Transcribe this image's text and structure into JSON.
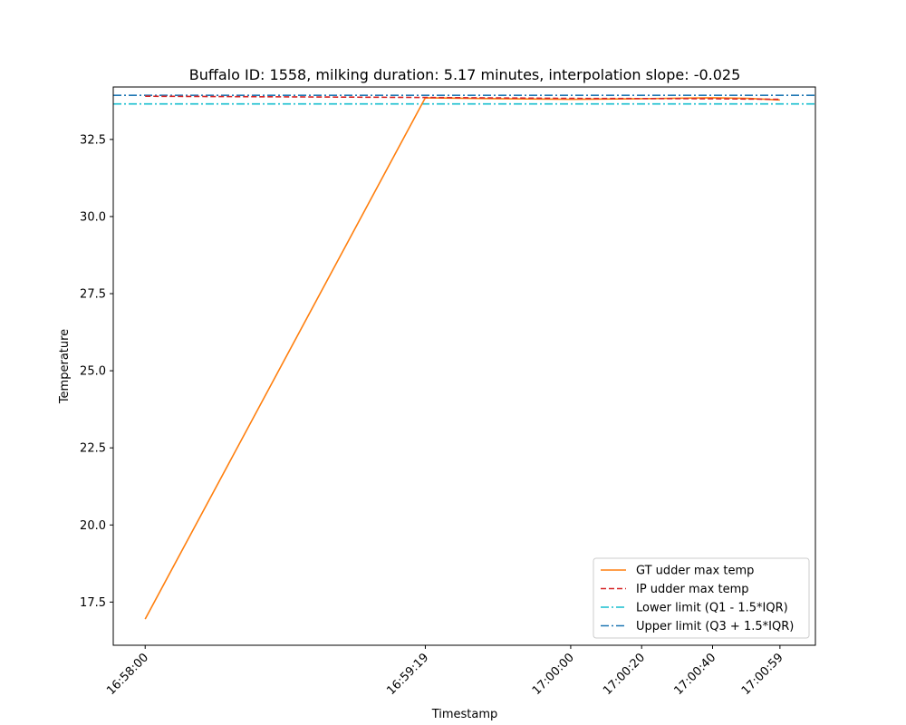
{
  "chart_data": {
    "type": "line",
    "title": "Buffalo ID: 1558, milking duration: 5.17 minutes, interpolation slope: -0.025",
    "xlabel": "Timestamp",
    "ylabel": "Temperature",
    "x_ticks": [
      {
        "t": 0,
        "label": "16:58:00"
      },
      {
        "t": 79,
        "label": "16:59:19"
      },
      {
        "t": 120,
        "label": "17:00:00"
      },
      {
        "t": 140,
        "label": "17:00:20"
      },
      {
        "t": 160,
        "label": "17:00:40"
      },
      {
        "t": 179,
        "label": "17:00:59"
      }
    ],
    "xlim": [
      -9,
      189
    ],
    "ylim": [
      16.1,
      34.2
    ],
    "y_ticks": [
      17.5,
      20.0,
      22.5,
      25.0,
      27.5,
      30.0,
      32.5
    ],
    "y_tick_labels": [
      "17.5",
      "20.0",
      "22.5",
      "25.0",
      "27.5",
      "30.0",
      "32.5"
    ],
    "series": [
      {
        "name": "GT udder max temp",
        "style": "solid",
        "color": "#ff7f0e",
        "x": [
          0,
          79,
          100,
          120,
          140,
          160,
          170,
          179
        ],
        "y": [
          16.95,
          33.85,
          33.82,
          33.8,
          33.82,
          33.85,
          33.83,
          33.78
        ]
      },
      {
        "name": "IP udder max temp",
        "style": "dashed",
        "color": "#d62728",
        "x": [
          0,
          79,
          120,
          160,
          179
        ],
        "y": [
          33.9,
          33.86,
          33.83,
          33.82,
          33.8
        ]
      }
    ],
    "hlines": [
      {
        "name": "Lower limit (Q1 - 1.5*IQR)",
        "y": 33.65,
        "color": "#17becf",
        "style": "dashdot"
      },
      {
        "name": "Upper limit (Q3 + 1.5*IQR)",
        "y": 33.93,
        "color": "#1f77b4",
        "style": "dashdot"
      }
    ],
    "legend": "lower-right",
    "grid": false
  }
}
